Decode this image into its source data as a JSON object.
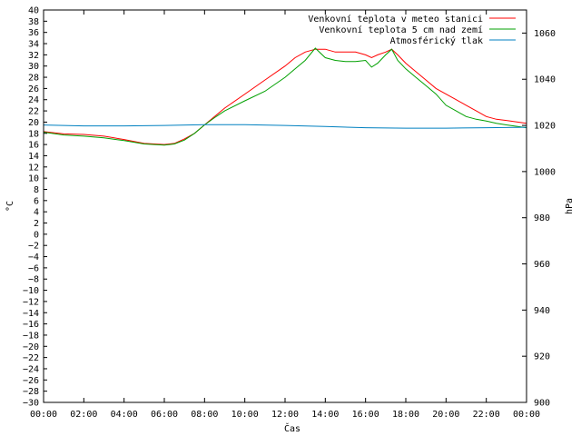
{
  "chart_data": {
    "type": "line",
    "xlabel": "Čas",
    "ylabel_left": "°C",
    "ylabel_right": "hPa",
    "x_ticks": [
      "00:00",
      "02:00",
      "04:00",
      "06:00",
      "08:00",
      "10:00",
      "12:00",
      "14:00",
      "16:00",
      "18:00",
      "20:00",
      "22:00",
      "00:00"
    ],
    "xlim_hours": [
      0,
      24
    ],
    "ylim_left": [
      -30,
      40
    ],
    "y_step_left": 2,
    "ylim_right": [
      900,
      1070
    ],
    "y_ticks_right": [
      900,
      920,
      940,
      960,
      980,
      1000,
      1020,
      1040,
      1060
    ],
    "grid": false,
    "legend_position": "top-right",
    "series": [
      {
        "name": "Venkovní teplota v meteo stanici",
        "color": "#ff0000",
        "axis": "left",
        "x": [
          0,
          1,
          2,
          3,
          4,
          5,
          6,
          6.5,
          7,
          7.5,
          8,
          8.5,
          9,
          10,
          11,
          12,
          12.5,
          13,
          13.5,
          14,
          14.5,
          15,
          15.5,
          16,
          16.3,
          16.6,
          17,
          17.3,
          17.6,
          18,
          18.5,
          19,
          19.5,
          20,
          20.5,
          21,
          21.5,
          22,
          22.5,
          23,
          24
        ],
        "y": [
          18.3,
          17.9,
          17.8,
          17.5,
          16.9,
          16.2,
          16.0,
          16.2,
          17.0,
          18.0,
          19.5,
          21.0,
          22.5,
          25.0,
          27.5,
          30.0,
          31.5,
          32.5,
          33.0,
          33.0,
          32.5,
          32.5,
          32.5,
          32.0,
          31.5,
          32.0,
          32.5,
          33.0,
          32.0,
          30.5,
          29.0,
          27.5,
          26.0,
          25.0,
          24.0,
          23.0,
          22.0,
          21.0,
          20.5,
          20.3,
          19.8
        ]
      },
      {
        "name": "Venkovní teplota 5 cm nad zemí",
        "color": "#00a000",
        "axis": "left",
        "x": [
          0,
          1,
          2,
          3,
          4,
          5,
          6,
          6.5,
          7,
          7.5,
          8,
          8.5,
          9,
          10,
          11,
          12,
          12.5,
          13,
          13.5,
          14,
          14.5,
          15,
          15.5,
          16,
          16.3,
          16.6,
          17,
          17.3,
          17.6,
          18,
          18.5,
          19,
          19.5,
          20,
          20.5,
          21,
          21.5,
          22,
          22.5,
          23,
          24
        ],
        "y": [
          18.2,
          17.7,
          17.5,
          17.2,
          16.7,
          16.1,
          15.9,
          16.1,
          16.8,
          18.0,
          19.5,
          20.8,
          22.0,
          23.8,
          25.5,
          28.0,
          29.5,
          31.0,
          33.2,
          31.5,
          31.0,
          30.8,
          30.8,
          31.0,
          29.8,
          30.5,
          32.0,
          33.0,
          31.0,
          29.5,
          28.0,
          26.5,
          25.0,
          23.0,
          22.0,
          21.0,
          20.5,
          20.2,
          19.8,
          19.5,
          19.0
        ]
      },
      {
        "name": "Atmosférický tlak",
        "color": "#0080c0",
        "axis": "right",
        "x": [
          0,
          2,
          4,
          6,
          8,
          10,
          12,
          14,
          16,
          18,
          20,
          22,
          24
        ],
        "y": [
          1020.2,
          1019.8,
          1019.8,
          1020.0,
          1020.3,
          1020.3,
          1020.0,
          1019.5,
          1019.0,
          1018.8,
          1018.8,
          1019.0,
          1019.2
        ]
      }
    ]
  }
}
